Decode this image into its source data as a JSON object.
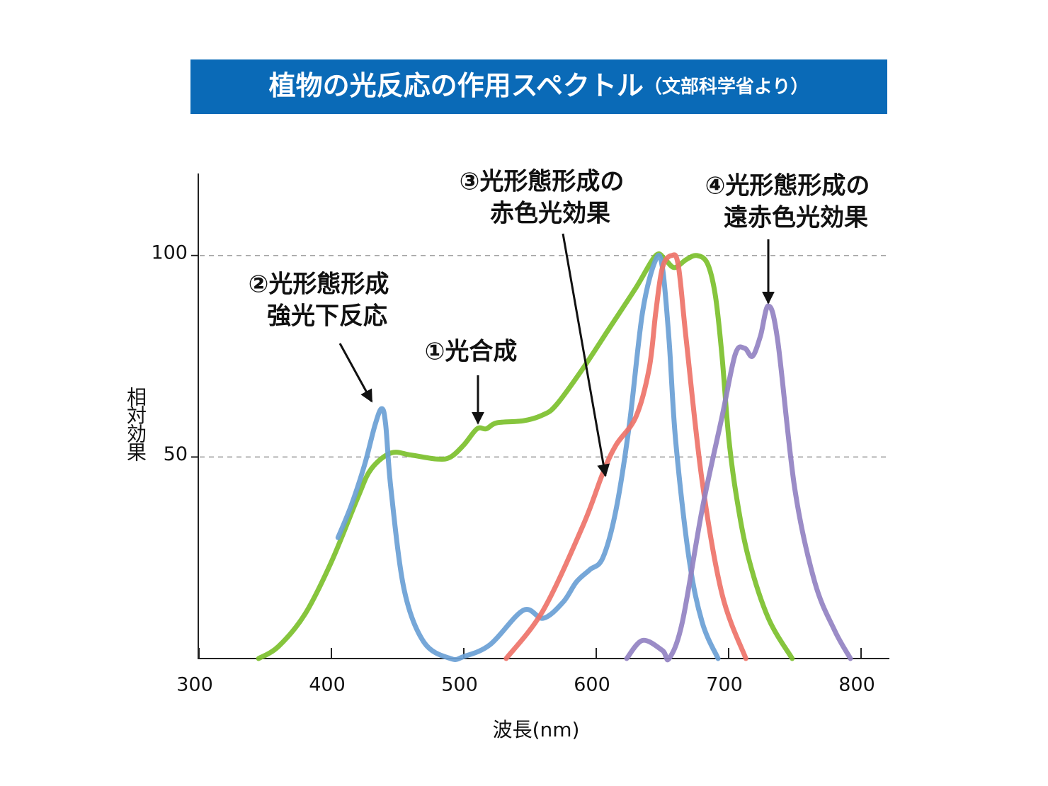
{
  "chart_data": {
    "type": "line",
    "title": "植物の光反応の作用スペクトル",
    "subtitle": "（文部科学省より）",
    "x_label": "波長(nm)",
    "y_label": "相対効果",
    "xlim": [
      300,
      820
    ],
    "ylim": [
      0,
      120
    ],
    "xticks": [
      300,
      400,
      500,
      600,
      700,
      800
    ],
    "yticks": [
      50,
      100
    ],
    "grid": true,
    "series": [
      {
        "color": "#7cc02c",
        "x": [
          345,
          360,
          380,
          400,
          420,
          430,
          445,
          460,
          480,
          490,
          500,
          510,
          517,
          525,
          545,
          560,
          570,
          590,
          610,
          630,
          645,
          652,
          659,
          668,
          676,
          684,
          690,
          695,
          700,
          706,
          715,
          730,
          748
        ],
        "values": [
          0,
          3,
          11,
          24,
          40,
          47,
          51,
          50.5,
          49.5,
          50,
          53,
          57,
          57,
          58.5,
          59,
          60.5,
          63,
          72,
          82,
          92,
          100,
          99,
          97,
          99,
          100,
          98,
          90,
          75,
          55,
          40,
          25,
          10,
          0
        ]
      },
      {
        "color": "#6a9fd5",
        "x": [
          405,
          415,
          425,
          433,
          438,
          441,
          445,
          455,
          470,
          490,
          500,
          520,
          545,
          560,
          575,
          585,
          595,
          605,
          615,
          625,
          635,
          645,
          650,
          655,
          660,
          670,
          680,
          692
        ],
        "values": [
          30,
          38,
          48,
          58,
          62,
          58,
          42,
          17,
          4,
          0,
          0.5,
          3.5,
          12,
          10,
          14,
          19,
          22,
          25,
          37,
          58,
          86,
          99,
          97,
          79,
          54,
          25,
          9,
          0
        ]
      },
      {
        "color": "#ee7369",
        "x": [
          532,
          560,
          590,
          605,
          615,
          630,
          640,
          645,
          650,
          657,
          662,
          668,
          680,
          695,
          713
        ],
        "values": [
          0,
          12,
          33,
          46,
          53,
          60,
          72,
          86,
          97,
          100,
          97.5,
          79,
          44,
          16,
          0
        ]
      },
      {
        "color": "#9282c2",
        "x": [
          623,
          635,
          650,
          655,
          665,
          680,
          695,
          705,
          712,
          718,
          724,
          730,
          737,
          750,
          765,
          780,
          792
        ],
        "values": [
          0,
          4.5,
          2,
          0,
          9,
          37,
          60,
          75.5,
          77,
          75,
          80,
          87.5,
          79,
          42,
          19,
          7,
          0
        ]
      }
    ],
    "annotations": [
      {
        "lines": [
          "①光合成"
        ]
      },
      {
        "lines": [
          "②光形態形成",
          "強光下反応"
        ]
      },
      {
        "lines": [
          "③光形態形成の",
          "赤色光効果"
        ]
      },
      {
        "lines": [
          "④光形態形成の",
          "遠赤色光効果"
        ]
      }
    ]
  }
}
